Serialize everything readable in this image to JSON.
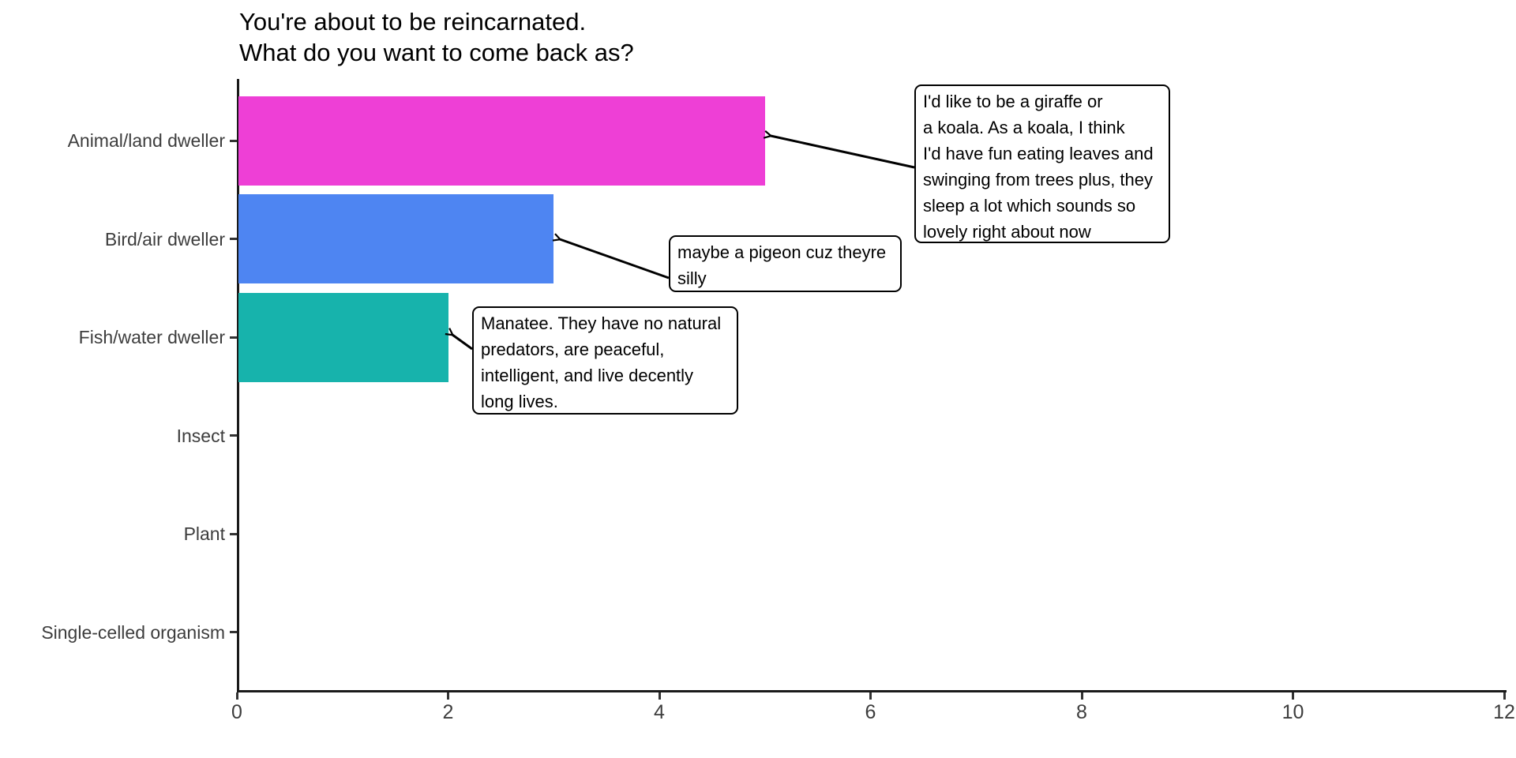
{
  "title_lines": [
    "You're about to be reincarnated.",
    "What do you want to come back as?"
  ],
  "chart_data": {
    "type": "bar",
    "orientation": "horizontal",
    "title": "You're about to be reincarnated. What do you want to come back as?",
    "categories": [
      "Animal/land dweller",
      "Bird/air dweller",
      "Fish/water dweller",
      "Insect",
      "Plant",
      "Single-celled organism"
    ],
    "values": [
      5,
      3,
      2,
      0,
      0,
      0
    ],
    "bar_colors": [
      "#ee3fd6",
      "#4e85f2",
      "#17b3ac",
      null,
      null,
      null
    ],
    "xlabel": "",
    "ylabel": "",
    "xlim": [
      0,
      12
    ],
    "x_ticks": [
      "0",
      "2",
      "4",
      "6",
      "8",
      "10",
      "12"
    ],
    "grid": false,
    "legend": "none",
    "annotations": [
      {
        "target_category": "Animal/land dweller",
        "lines": [
          "I'd like to be a giraffe or",
          "a koala. As a koala, I think",
          "I'd have fun eating leaves and",
          "swinging from trees plus, they",
          "sleep a lot which sounds so",
          "lovely right about now"
        ]
      },
      {
        "target_category": "Bird/air dweller",
        "lines": [
          "maybe a pigeon cuz theyre",
          "silly"
        ]
      },
      {
        "target_category": "Fish/water dweller",
        "lines": [
          "Manatee. They have no natural",
          "predators, are peaceful,",
          "intelligent, and live decently",
          "long lives."
        ]
      }
    ]
  },
  "colors": {
    "axis": "#1a1a1a",
    "tick_mark": "#333333",
    "axis_label": "#3d3d3d",
    "title": "#000000",
    "annotation_border": "#000000",
    "annotation_bg": "#ffffff",
    "arrow": "#000000"
  }
}
